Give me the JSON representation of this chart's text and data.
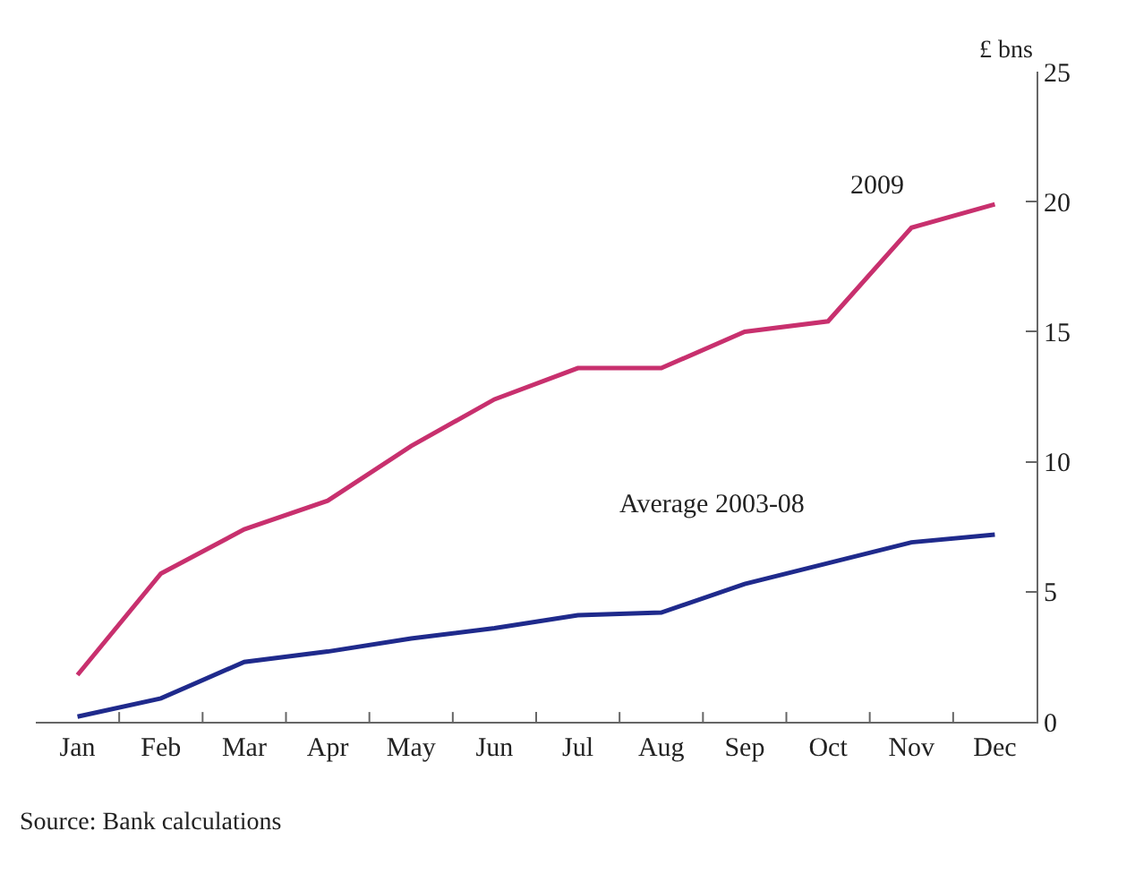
{
  "chart_data": {
    "type": "line",
    "ylabel": "£ bns",
    "categories": [
      "Jan",
      "Feb",
      "Mar",
      "Apr",
      "May",
      "Jun",
      "Jul",
      "Aug",
      "Sep",
      "Oct",
      "Nov",
      "Dec"
    ],
    "series": [
      {
        "name": "2009",
        "color": "#c8306e",
        "values": [
          1.8,
          5.7,
          7.4,
          8.5,
          10.6,
          12.4,
          13.6,
          13.6,
          15.0,
          15.4,
          19.0,
          19.9
        ]
      },
      {
        "name": "Average 2003-08",
        "color": "#1f2a8c",
        "values": [
          0.2,
          0.9,
          2.3,
          2.7,
          3.2,
          3.6,
          4.1,
          4.2,
          5.3,
          6.1,
          6.9,
          7.2
        ]
      }
    ],
    "ylim": [
      0,
      25
    ],
    "yticks": [
      0,
      5,
      10,
      15,
      20,
      25
    ],
    "grid": false,
    "legend": false,
    "marker": "none",
    "line_style": "solid",
    "annotations": [
      "Source: Bank calculations"
    ]
  }
}
